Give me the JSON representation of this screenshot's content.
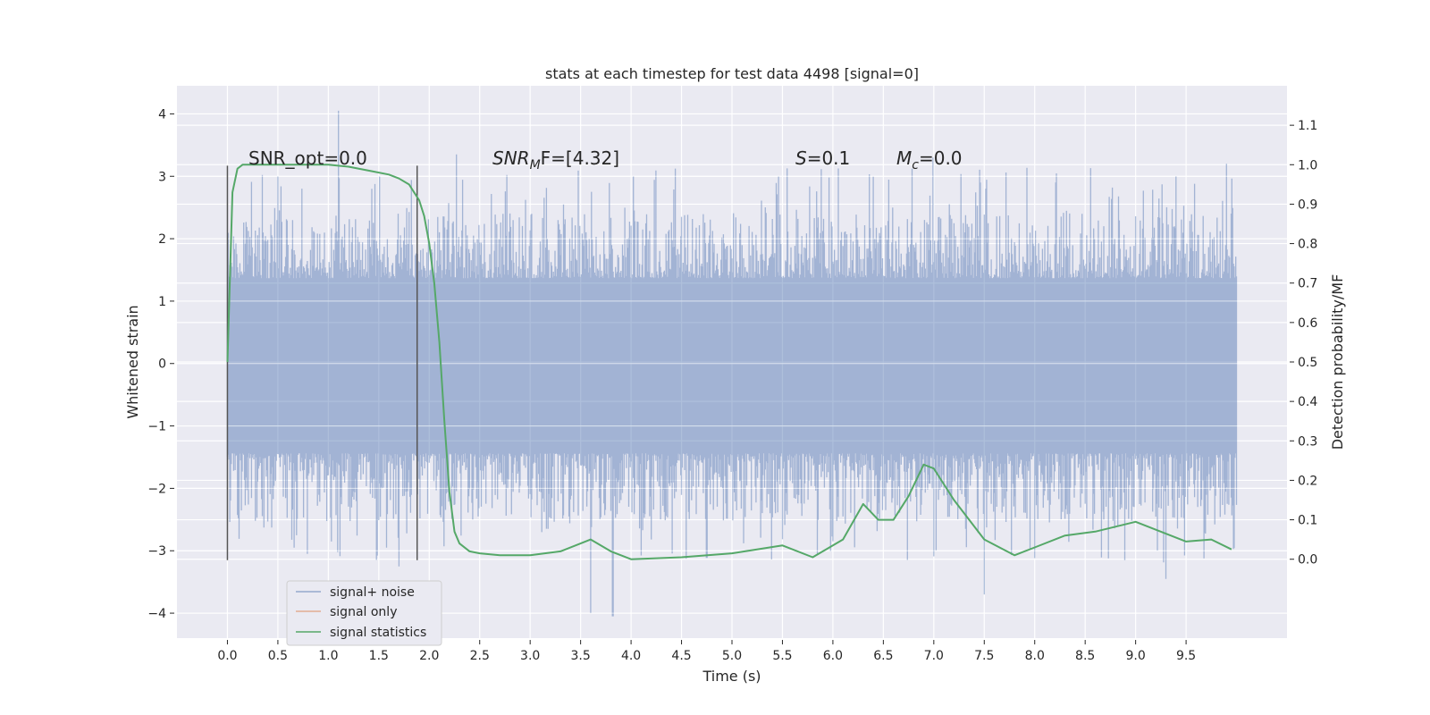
{
  "chart_data": {
    "type": "line",
    "title": "stats at each timestep for test data 4498 [signal=0]",
    "xlabel": "Time (s)",
    "ylabel": "Whitened strain",
    "y2label": "Detection probability/MF",
    "xlim": [
      -0.5,
      10.5
    ],
    "ylim": [
      -4.4,
      4.45
    ],
    "y2lim": [
      -0.2,
      1.2
    ],
    "x_ticks": [
      "0.0",
      "0.5",
      "1.0",
      "1.5",
      "2.0",
      "2.5",
      "3.0",
      "3.5",
      "4.0",
      "4.5",
      "5.0",
      "5.5",
      "6.0",
      "6.5",
      "7.0",
      "7.5",
      "8.0",
      "8.5",
      "9.0",
      "9.5"
    ],
    "y_ticks": [
      "4",
      "3",
      "2",
      "1",
      "0",
      "−1",
      "−2",
      "−3",
      "−4"
    ],
    "y2_ticks": [
      "1.1",
      "1.0",
      "0.9",
      "0.8",
      "0.7",
      "0.6",
      "0.5",
      "0.4",
      "0.3",
      "0.2",
      "0.1",
      "0.0"
    ],
    "grid": true,
    "legend": {
      "placement": "lower-left",
      "entries": [
        {
          "label": "signal+ noise",
          "color": "#4c72b0"
        },
        {
          "label": "signal only",
          "color": "#dd8452"
        },
        {
          "label": "signal statistics",
          "color": "#55a868"
        }
      ]
    },
    "annotations": {
      "snr_opt": "SNR_opt=0.0",
      "snr_mf_base": "SNR",
      "snr_mf_sub": "M",
      "snr_mf_rest": "F=[4.32]",
      "s_base": "S",
      "s_rest": "=0.1",
      "mc_base": "M",
      "mc_sub": "c",
      "mc_rest": "=0.0"
    },
    "vlines": {
      "x": [
        0.0,
        1.88
      ],
      "ymin": -3.15,
      "ymax": 3.17
    },
    "noise_series": {
      "name": "signal+ noise",
      "color": "#4c72b0",
      "x_range": [
        0.0,
        10.0
      ],
      "core_extent": [
        -2.0,
        1.9
      ],
      "peaks": [
        [
          1.1,
          4.05
        ],
        [
          0.5,
          3.0
        ],
        [
          2.27,
          3.35
        ],
        [
          6.99,
          3.3
        ],
        [
          9.9,
          3.2
        ],
        [
          3.6,
          -4.0
        ],
        [
          3.82,
          -4.05
        ],
        [
          7.5,
          -3.7
        ],
        [
          9.3,
          -3.45
        ],
        [
          1.7,
          -3.25
        ]
      ]
    },
    "statistics_series": {
      "name": "signal statistics",
      "color": "#55a868",
      "x": [
        0.0,
        0.05,
        0.1,
        0.15,
        0.2,
        0.3,
        0.5,
        0.8,
        1.0,
        1.2,
        1.4,
        1.6,
        1.7,
        1.8,
        1.85,
        1.9,
        1.95,
        2.0,
        2.05,
        2.1,
        2.15,
        2.2,
        2.25,
        2.3,
        2.4,
        2.5,
        2.7,
        3.0,
        3.3,
        3.5,
        3.6,
        3.8,
        4.0,
        4.5,
        5.0,
        5.5,
        5.8,
        6.1,
        6.3,
        6.45,
        6.6,
        6.75,
        6.9,
        7.0,
        7.2,
        7.5,
        7.8,
        8.0,
        8.3,
        8.6,
        9.0,
        9.5,
        9.75,
        9.95
      ],
      "y": [
        0.5,
        0.93,
        0.99,
        1.0,
        1.0,
        1.0,
        1.0,
        1.0,
        1.0,
        0.995,
        0.985,
        0.975,
        0.965,
        0.95,
        0.93,
        0.91,
        0.87,
        0.8,
        0.7,
        0.55,
        0.35,
        0.17,
        0.07,
        0.04,
        0.02,
        0.015,
        0.01,
        0.01,
        0.02,
        0.04,
        0.05,
        0.02,
        0.0,
        0.005,
        0.015,
        0.035,
        0.005,
        0.05,
        0.14,
        0.1,
        0.1,
        0.16,
        0.24,
        0.23,
        0.15,
        0.05,
        0.01,
        0.03,
        0.06,
        0.07,
        0.095,
        0.045,
        0.05,
        0.025
      ]
    }
  }
}
